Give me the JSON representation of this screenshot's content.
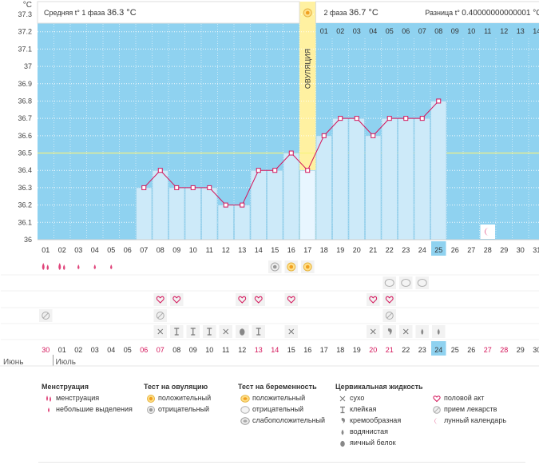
{
  "header": {
    "phase1_label": "Средняя t° 1 фаза",
    "phase1_value": "36.3 °C",
    "phase2_label": "2 фаза",
    "phase2_value": "36.7 °C",
    "diff_label": "Разница t°",
    "diff_value": "0.40000000000001 °C"
  },
  "chart_data": {
    "type": "line",
    "title": "",
    "ylabel": "°C",
    "ylim": [
      36,
      37.3
    ],
    "yticks": [
      "36",
      "36.1",
      "36.2",
      "36.3",
      "36.4",
      "36.5",
      "36.6",
      "36.7",
      "36.8",
      "36.9",
      "37",
      "37.1",
      "37.2",
      "37.3"
    ],
    "coverline": 36.5,
    "ovulation_day_index": 16,
    "ovulation_label": "ОВУЛЯЦИЯ",
    "cycle_days": [
      "01",
      "02",
      "03",
      "04",
      "05",
      "06",
      "07",
      "08",
      "09",
      "10",
      "11",
      "12",
      "13",
      "14",
      "15",
      "16",
      "17",
      "18",
      "19",
      "20",
      "21",
      "22",
      "23",
      "24",
      "25",
      "26",
      "27",
      "28",
      "29",
      "30",
      "31"
    ],
    "phase2_days": [
      "01",
      "02",
      "03",
      "04",
      "05",
      "06",
      "07",
      "08",
      "09",
      "10",
      "11",
      "12",
      "13",
      "14"
    ],
    "current_day_index": 24,
    "dates": [
      "30",
      "01",
      "02",
      "03",
      "04",
      "05",
      "06",
      "07",
      "08",
      "09",
      "10",
      "11",
      "12",
      "13",
      "14",
      "15",
      "16",
      "17",
      "18",
      "19",
      "20",
      "21",
      "22",
      "23",
      "24",
      "25",
      "26",
      "27",
      "28",
      "29",
      "30"
    ],
    "weekend_date_indices": [
      0,
      6,
      7,
      13,
      14,
      20,
      21,
      27,
      28
    ],
    "months": [
      "Июнь",
      "Июль"
    ],
    "series": [
      {
        "name": "Базальная температура",
        "values": [
          null,
          null,
          null,
          null,
          null,
          null,
          36.3,
          36.4,
          36.3,
          36.3,
          36.3,
          36.2,
          36.2,
          36.4,
          36.4,
          36.5,
          36.4,
          36.6,
          36.7,
          36.7,
          36.6,
          36.7,
          36.7,
          36.7,
          36.8,
          null,
          null,
          null,
          null,
          null,
          null
        ]
      }
    ]
  },
  "rows": {
    "menstruation": [
      2,
      2,
      1,
      1,
      1,
      0,
      0,
      0,
      0,
      0,
      0,
      0,
      0,
      0,
      0,
      0,
      0,
      0,
      0,
      0,
      0,
      0,
      0,
      0,
      0,
      0,
      0,
      0,
      0,
      0,
      0
    ],
    "ovulation_test": [
      "",
      "",
      "",
      "",
      "",
      "",
      "",
      "",
      "",
      "",
      "",
      "",
      "",
      "",
      "neg",
      "pos",
      "pos",
      "",
      "",
      "",
      "",
      "",
      "",
      "",
      "",
      "",
      "",
      "",
      "",
      "",
      ""
    ],
    "pregnancy_test": [
      "",
      "",
      "",
      "",
      "",
      "",
      "",
      "",
      "",
      "",
      "",
      "",
      "",
      "",
      "",
      "",
      "",
      "",
      "",
      "",
      "",
      "neg",
      "neg",
      "neg",
      "",
      "",
      "",
      "",
      "",
      "",
      ""
    ],
    "intercourse": [
      0,
      0,
      0,
      0,
      0,
      0,
      0,
      1,
      1,
      0,
      0,
      0,
      1,
      1,
      0,
      1,
      0,
      0,
      0,
      0,
      1,
      1,
      0,
      0,
      0,
      0,
      0,
      0,
      0,
      0,
      0
    ],
    "medication": [
      1,
      0,
      0,
      0,
      0,
      0,
      0,
      1,
      0,
      0,
      0,
      0,
      0,
      0,
      0,
      0,
      0,
      0,
      0,
      0,
      0,
      1,
      0,
      0,
      0,
      0,
      0,
      0,
      0,
      0,
      0
    ],
    "cervical_fluid": [
      "",
      "",
      "",
      "",
      "",
      "",
      "",
      "dry",
      "sticky",
      "sticky",
      "sticky",
      "dry",
      "eggwhite",
      "sticky",
      "",
      "dry",
      "",
      "",
      "",
      "",
      "dry",
      "creamy",
      "dry",
      "watery",
      "watery",
      "",
      "",
      "",
      "",
      "",
      ""
    ],
    "lunar": [
      0,
      0,
      0,
      0,
      0,
      0,
      0,
      0,
      0,
      0,
      0,
      0,
      0,
      0,
      0,
      0,
      0,
      0,
      0,
      0,
      0,
      0,
      0,
      0,
      0,
      0,
      0,
      1,
      0,
      0,
      0
    ]
  },
  "legend": {
    "menstruation": {
      "title": "Менструация",
      "items": [
        "менструация",
        "небольшие выделения"
      ]
    },
    "ovulation_test": {
      "title": "Тест на овуляцию",
      "items": [
        "положительный",
        "отрицательный"
      ]
    },
    "pregnancy_test": {
      "title": "Тест на беременность",
      "items": [
        "положительный",
        "отрицательный",
        "слабоположительный"
      ]
    },
    "cervical": {
      "title": "Цервикальная жидкость",
      "items": [
        "сухо",
        "клейкая",
        "кремообразная",
        "водянистая",
        "яичный белок"
      ]
    },
    "other": {
      "items": [
        "половой акт",
        "прием лекарств",
        "лунный календарь"
      ]
    }
  },
  "colors": {
    "plot_bg": "#8fd2f0",
    "bar_fill": "#cdeaf9",
    "bar_stroke": "#8fcbe8",
    "line": "#d4145a",
    "ovulation": "#fff1a1",
    "coverline": "#f8f37a",
    "weekend": "#d4145a",
    "current_day": "#8fd2f0"
  }
}
